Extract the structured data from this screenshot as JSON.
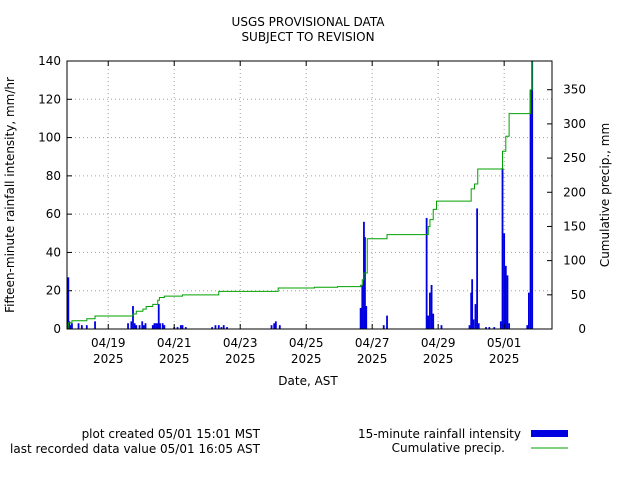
{
  "chart_data": {
    "type": "bar",
    "title": "USGS PROVISIONAL DATA",
    "subtitle": "SUBJECT TO REVISION",
    "xlabel": "Date, AST",
    "ylabel": "Fifteen-minute rainfall intensity, mm/hr",
    "y2label": "Cumulative precip., mm",
    "xlim": [
      0.0,
      14.7
    ],
    "ylim": [
      0,
      140
    ],
    "y2lim": [
      0,
      392
    ],
    "grid": true,
    "legend_position": "bottom-right",
    "x_ticks": [
      {
        "x": 1.25,
        "label": "04/19",
        "year": "2025"
      },
      {
        "x": 3.25,
        "label": "04/21",
        "year": "2025"
      },
      {
        "x": 5.25,
        "label": "04/23",
        "year": "2025"
      },
      {
        "x": 7.25,
        "label": "04/25",
        "year": "2025"
      },
      {
        "x": 9.25,
        "label": "04/27",
        "year": "2025"
      },
      {
        "x": 11.25,
        "label": "04/29",
        "year": "2025"
      },
      {
        "x": 13.25,
        "label": "05/01",
        "year": "2025"
      }
    ],
    "y_ticks": [
      0,
      20,
      40,
      60,
      80,
      100,
      120,
      140
    ],
    "y2_ticks": [
      0,
      50,
      100,
      150,
      200,
      250,
      300,
      350
    ],
    "series": [
      {
        "name": "15-minute rainfall intensity",
        "kind": "bar",
        "axis": "left",
        "color": "#0000e0",
        "points": [
          [
            0.04,
            27
          ],
          [
            0.07,
            4
          ],
          [
            0.1,
            2
          ],
          [
            0.15,
            3
          ],
          [
            0.35,
            3
          ],
          [
            0.45,
            2
          ],
          [
            0.6,
            2
          ],
          [
            0.85,
            4
          ],
          [
            1.85,
            3
          ],
          [
            1.95,
            4
          ],
          [
            2.0,
            12
          ],
          [
            2.05,
            3
          ],
          [
            2.1,
            2
          ],
          [
            2.2,
            2
          ],
          [
            2.28,
            4
          ],
          [
            2.33,
            2
          ],
          [
            2.38,
            3
          ],
          [
            2.6,
            2
          ],
          [
            2.65,
            3
          ],
          [
            2.7,
            3
          ],
          [
            2.75,
            3
          ],
          [
            2.78,
            13
          ],
          [
            2.82,
            3
          ],
          [
            2.9,
            3
          ],
          [
            2.95,
            2
          ],
          [
            3.25,
            1
          ],
          [
            3.35,
            1
          ],
          [
            3.45,
            2
          ],
          [
            3.5,
            2
          ],
          [
            3.6,
            1
          ],
          [
            4.4,
            1
          ],
          [
            4.5,
            2
          ],
          [
            4.6,
            2
          ],
          [
            4.68,
            1
          ],
          [
            4.75,
            2
          ],
          [
            4.85,
            1
          ],
          [
            6.2,
            2
          ],
          [
            6.28,
            3
          ],
          [
            6.33,
            4
          ],
          [
            6.45,
            2
          ],
          [
            8.9,
            11
          ],
          [
            8.95,
            23
          ],
          [
            9.0,
            56
          ],
          [
            9.03,
            48
          ],
          [
            9.07,
            12
          ],
          [
            9.6,
            2
          ],
          [
            9.7,
            7
          ],
          [
            10.9,
            58
          ],
          [
            10.95,
            7
          ],
          [
            11.0,
            19
          ],
          [
            11.05,
            23
          ],
          [
            11.1,
            8
          ],
          [
            11.35,
            2
          ],
          [
            12.2,
            2
          ],
          [
            12.25,
            19
          ],
          [
            12.28,
            26
          ],
          [
            12.32,
            5
          ],
          [
            12.38,
            13
          ],
          [
            12.43,
            63
          ],
          [
            12.48,
            3
          ],
          [
            12.7,
            1
          ],
          [
            12.8,
            1
          ],
          [
            12.95,
            1
          ],
          [
            13.15,
            4
          ],
          [
            13.2,
            84
          ],
          [
            13.25,
            50
          ],
          [
            13.3,
            33
          ],
          [
            13.35,
            28
          ],
          [
            13.4,
            3
          ],
          [
            13.95,
            2
          ],
          [
            14.0,
            19
          ],
          [
            14.05,
            125
          ],
          [
            14.1,
            140
          ]
        ]
      },
      {
        "name": "Cumulative precip.",
        "kind": "line",
        "axis": "right",
        "color": "#00a000",
        "points": [
          [
            0.0,
            0
          ],
          [
            0.04,
            9
          ],
          [
            0.15,
            12
          ],
          [
            0.6,
            15
          ],
          [
            0.85,
            19
          ],
          [
            1.85,
            19
          ],
          [
            2.0,
            22
          ],
          [
            2.1,
            26
          ],
          [
            2.3,
            29
          ],
          [
            2.4,
            33
          ],
          [
            2.6,
            36
          ],
          [
            2.75,
            42
          ],
          [
            2.8,
            46
          ],
          [
            2.95,
            48
          ],
          [
            3.5,
            50
          ],
          [
            4.35,
            50
          ],
          [
            4.6,
            55
          ],
          [
            6.3,
            55
          ],
          [
            6.4,
            60
          ],
          [
            7.5,
            61
          ],
          [
            8.2,
            62
          ],
          [
            8.9,
            64
          ],
          [
            8.95,
            72
          ],
          [
            9.0,
            82
          ],
          [
            9.1,
            132
          ],
          [
            9.6,
            132
          ],
          [
            9.7,
            138
          ],
          [
            10.9,
            138
          ],
          [
            10.95,
            150
          ],
          [
            11.0,
            160
          ],
          [
            11.1,
            175
          ],
          [
            11.2,
            187
          ],
          [
            12.0,
            187
          ],
          [
            12.25,
            205
          ],
          [
            12.35,
            212
          ],
          [
            12.45,
            234
          ],
          [
            13.15,
            234
          ],
          [
            13.2,
            260
          ],
          [
            13.3,
            282
          ],
          [
            13.4,
            315
          ],
          [
            13.95,
            315
          ],
          [
            14.05,
            350
          ],
          [
            14.1,
            392
          ]
        ]
      }
    ]
  },
  "footer": {
    "plot_created": "plot created 05/01 15:01 MST",
    "last_recorded": "last recorded data value 05/01 16:05 AST"
  }
}
